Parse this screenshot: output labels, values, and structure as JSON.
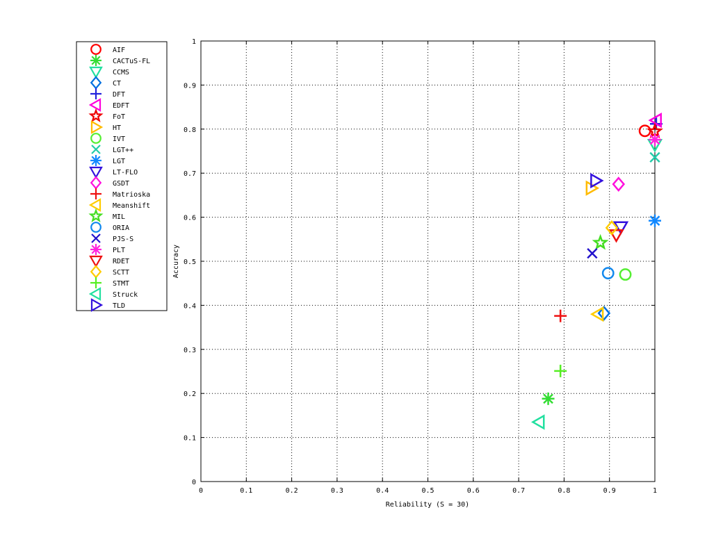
{
  "chart_data": {
    "type": "scatter",
    "title": "",
    "xlabel": "Reliability (S = 30)",
    "ylabel": "Accuracy",
    "xlim": [
      0,
      1
    ],
    "ylim": [
      0,
      1
    ],
    "xticks": [
      0,
      0.1,
      0.2,
      0.3,
      0.4,
      0.5,
      0.6,
      0.7,
      0.8,
      0.9,
      1
    ],
    "yticks": [
      0,
      0.1,
      0.2,
      0.3,
      0.4,
      0.5,
      0.6,
      0.7,
      0.8,
      0.9,
      1
    ],
    "xtick_labels": [
      "0",
      "0.1",
      "0.2",
      "0.3",
      "0.4",
      "0.5",
      "0.6",
      "0.7",
      "0.8",
      "0.9",
      "1"
    ],
    "ytick_labels": [
      "0",
      "0.1",
      "0.2",
      "0.3",
      "0.4",
      "0.5",
      "0.6",
      "0.7",
      "0.8",
      "0.9",
      "1"
    ],
    "grid": true,
    "legend_position": "outside-left",
    "series": [
      {
        "name": "AIF",
        "marker": "circle",
        "color": "#ff0000",
        "points": [
          {
            "x": 0.978,
            "y": 0.796
          }
        ]
      },
      {
        "name": "CACTuS-FL",
        "marker": "asterisk",
        "color": "#33dd33",
        "points": [
          {
            "x": 0.765,
            "y": 0.188
          }
        ]
      },
      {
        "name": "CCMS",
        "marker": "triangle-down",
        "color": "#22e0a0",
        "points": [
          {
            "x": 1.0,
            "y": 0.765
          }
        ]
      },
      {
        "name": "CT",
        "marker": "diamond",
        "color": "#0070e0",
        "points": [
          {
            "x": 0.888,
            "y": 0.382
          }
        ]
      },
      {
        "name": "DFT",
        "marker": "plus",
        "color": "#2222dd",
        "points": [
          {
            "x": 1.003,
            "y": 0.812
          }
        ]
      },
      {
        "name": "EDFT",
        "marker": "triangle-left",
        "color": "#ff00dd",
        "points": [
          {
            "x": 1.003,
            "y": 0.82
          }
        ]
      },
      {
        "name": "FoT",
        "marker": "pentagram",
        "color": "#ee0000",
        "points": [
          {
            "x": 1.0,
            "y": 0.795
          }
        ]
      },
      {
        "name": "HT",
        "marker": "triangle-right",
        "color": "#ffbb00",
        "points": [
          {
            "x": 0.86,
            "y": 0.666
          }
        ]
      },
      {
        "name": "IVT",
        "marker": "circle",
        "color": "#55ee33",
        "points": [
          {
            "x": 0.935,
            "y": 0.47
          }
        ]
      },
      {
        "name": "LGT++",
        "marker": "x",
        "color": "#22ccaa",
        "points": [
          {
            "x": 1.0,
            "y": 0.736
          }
        ]
      },
      {
        "name": "LGT",
        "marker": "asterisk",
        "color": "#1188ff",
        "points": [
          {
            "x": 1.0,
            "y": 0.592
          }
        ]
      },
      {
        "name": "LT-FLO",
        "marker": "triangle-down",
        "color": "#3311dd",
        "points": [
          {
            "x": 0.925,
            "y": 0.578
          }
        ]
      },
      {
        "name": "GSDT",
        "marker": "diamond",
        "color": "#ff11dd",
        "points": [
          {
            "x": 0.92,
            "y": 0.675
          }
        ]
      },
      {
        "name": "Matrioska",
        "marker": "plus",
        "color": "#ee1111",
        "points": [
          {
            "x": 0.792,
            "y": 0.376
          }
        ]
      },
      {
        "name": "Meanshift",
        "marker": "triangle-left",
        "color": "#ffcc00",
        "points": [
          {
            "x": 0.875,
            "y": 0.38
          }
        ]
      },
      {
        "name": "MIL",
        "marker": "pentagram",
        "color": "#44dd22",
        "points": [
          {
            "x": 0.88,
            "y": 0.542
          }
        ]
      },
      {
        "name": "ORIA",
        "marker": "circle",
        "color": "#1188ee",
        "points": [
          {
            "x": 0.897,
            "y": 0.473
          }
        ]
      },
      {
        "name": "PJS-S",
        "marker": "x",
        "color": "#2211cc",
        "points": [
          {
            "x": 0.862,
            "y": 0.518
          }
        ]
      },
      {
        "name": "PLT",
        "marker": "asterisk",
        "color": "#ff22dd",
        "points": [
          {
            "x": 1.0,
            "y": 0.776
          }
        ]
      },
      {
        "name": "RDET",
        "marker": "triangle-down",
        "color": "#ee1111",
        "points": [
          {
            "x": 0.915,
            "y": 0.56
          }
        ]
      },
      {
        "name": "SCTT",
        "marker": "diamond",
        "color": "#ffcc00",
        "points": [
          {
            "x": 0.905,
            "y": 0.576
          }
        ]
      },
      {
        "name": "STMT",
        "marker": "plus",
        "color": "#55ee22",
        "points": [
          {
            "x": 0.792,
            "y": 0.251
          }
        ]
      },
      {
        "name": "Struck",
        "marker": "triangle-left",
        "color": "#22e0a0",
        "points": [
          {
            "x": 0.745,
            "y": 0.135
          }
        ]
      },
      {
        "name": "TLD",
        "marker": "triangle-right",
        "color": "#3311dd",
        "points": [
          {
            "x": 0.87,
            "y": 0.683
          }
        ]
      }
    ]
  }
}
